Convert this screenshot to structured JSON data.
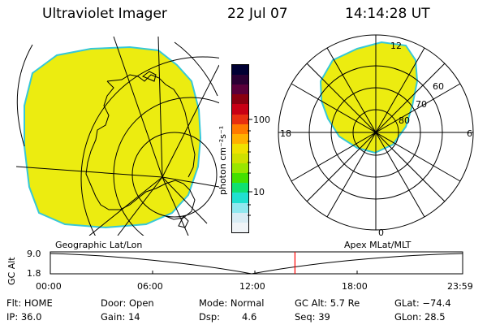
{
  "header": {
    "instrument": "Ultraviolet Imager",
    "date": "22 Jul 07",
    "time": "14:14:28 UT"
  },
  "colorbar": {
    "unit_label": "photon cm⁻²s⁻¹",
    "tick_labels": [
      "100",
      "10"
    ],
    "colors": [
      "#000033",
      "#2a0033",
      "#5a003a",
      "#8a0010",
      "#c80014",
      "#e83010",
      "#ff7a00",
      "#ffb000",
      "#f0e000",
      "#cfe000",
      "#99e600",
      "#44e000",
      "#10e070",
      "#20e0d0",
      "#90e8ef",
      "#d8ecf4",
      "#f0f4f7"
    ]
  },
  "left_panel": {
    "label": "Geographic Lat/Lon"
  },
  "right_panel": {
    "label": "Apex MLat/MLT",
    "mlt_labels": {
      "top": "12",
      "left": "18",
      "right": "6",
      "bottom": "0"
    },
    "lat_labels": [
      "60",
      "70",
      "80"
    ]
  },
  "altitude_plot": {
    "ylabel": "GC Alt",
    "y_ticks": [
      "9.0",
      "1.8"
    ],
    "x_ticks": [
      "00:00",
      "06:00",
      "12:00",
      "18:00",
      "23:59"
    ],
    "current_time_hours": 14.24,
    "marker_color": "#ff0000"
  },
  "info": {
    "row1": {
      "flt": "Flt: HOME",
      "door": "Door: Open",
      "mode": "Mode: Normal",
      "gc_alt": "GC Alt: 5.7 Re",
      "glat": "GLat: −74.4"
    },
    "row2": {
      "ip": "IP: 36.0",
      "gain": "Gain: 14",
      "dsp_label": "Dsp:",
      "dsp_value": "4.6",
      "seq": "Seq: 39",
      "glon": "GLon:  28.5"
    }
  },
  "colors": {
    "aurora_fill": "#ecec10",
    "aurora_edge": "#36c8d8"
  }
}
